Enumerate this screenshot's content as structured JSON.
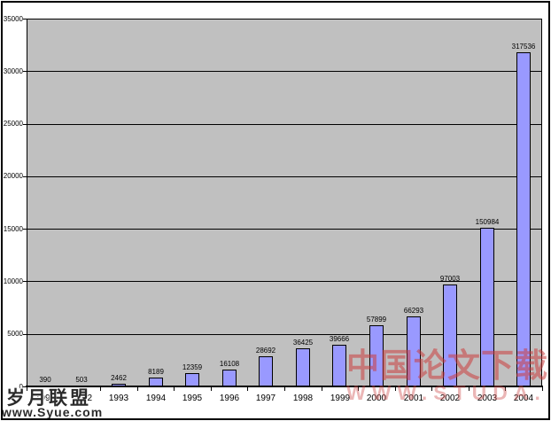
{
  "chart_data": {
    "type": "bar",
    "title": "",
    "xlabel": "",
    "ylabel": "",
    "categories": [
      "1991",
      "1992",
      "1993",
      "1994",
      "1995",
      "1996",
      "1997",
      "1998",
      "1999",
      "2000",
      "2001",
      "2002",
      "2003",
      "2004"
    ],
    "values": [
      390,
      503,
      2462,
      8189,
      12359,
      16108,
      28692,
      36425,
      39666,
      57899,
      66293,
      97003,
      150984,
      317536
    ],
    "bar_labels": [
      "390",
      "503",
      "2462",
      "8189",
      "12359",
      "16108",
      "28692",
      "36425",
      "39666",
      "57899",
      "66293",
      "97003",
      "150984",
      "317536"
    ],
    "plotted_values": [
      39,
      50.3,
      246.2,
      818.9,
      1235.9,
      1610.8,
      2869.2,
      3642.5,
      3966.6,
      5789.9,
      6629.3,
      9700.3,
      15098.4,
      31753.6
    ],
    "ylim": [
      0,
      35000
    ],
    "yticks": [
      0,
      5000,
      10000,
      15000,
      20000,
      25000,
      30000,
      35000
    ],
    "grid": true,
    "legend": false,
    "colors": {
      "plot_background": "#c0c0c0",
      "bar_fill": "#9999ff",
      "bar_border": "#000000",
      "gridline": "#000000",
      "axis": "#000000"
    }
  },
  "watermarks": {
    "bottom_left": {
      "line1": "岁月联盟",
      "line2": "www.Syue.com"
    },
    "red_overlay": {
      "line1": "中国论文下载",
      "line2": "WWW.STUDA.",
      "color": "#ca3c3c"
    }
  }
}
